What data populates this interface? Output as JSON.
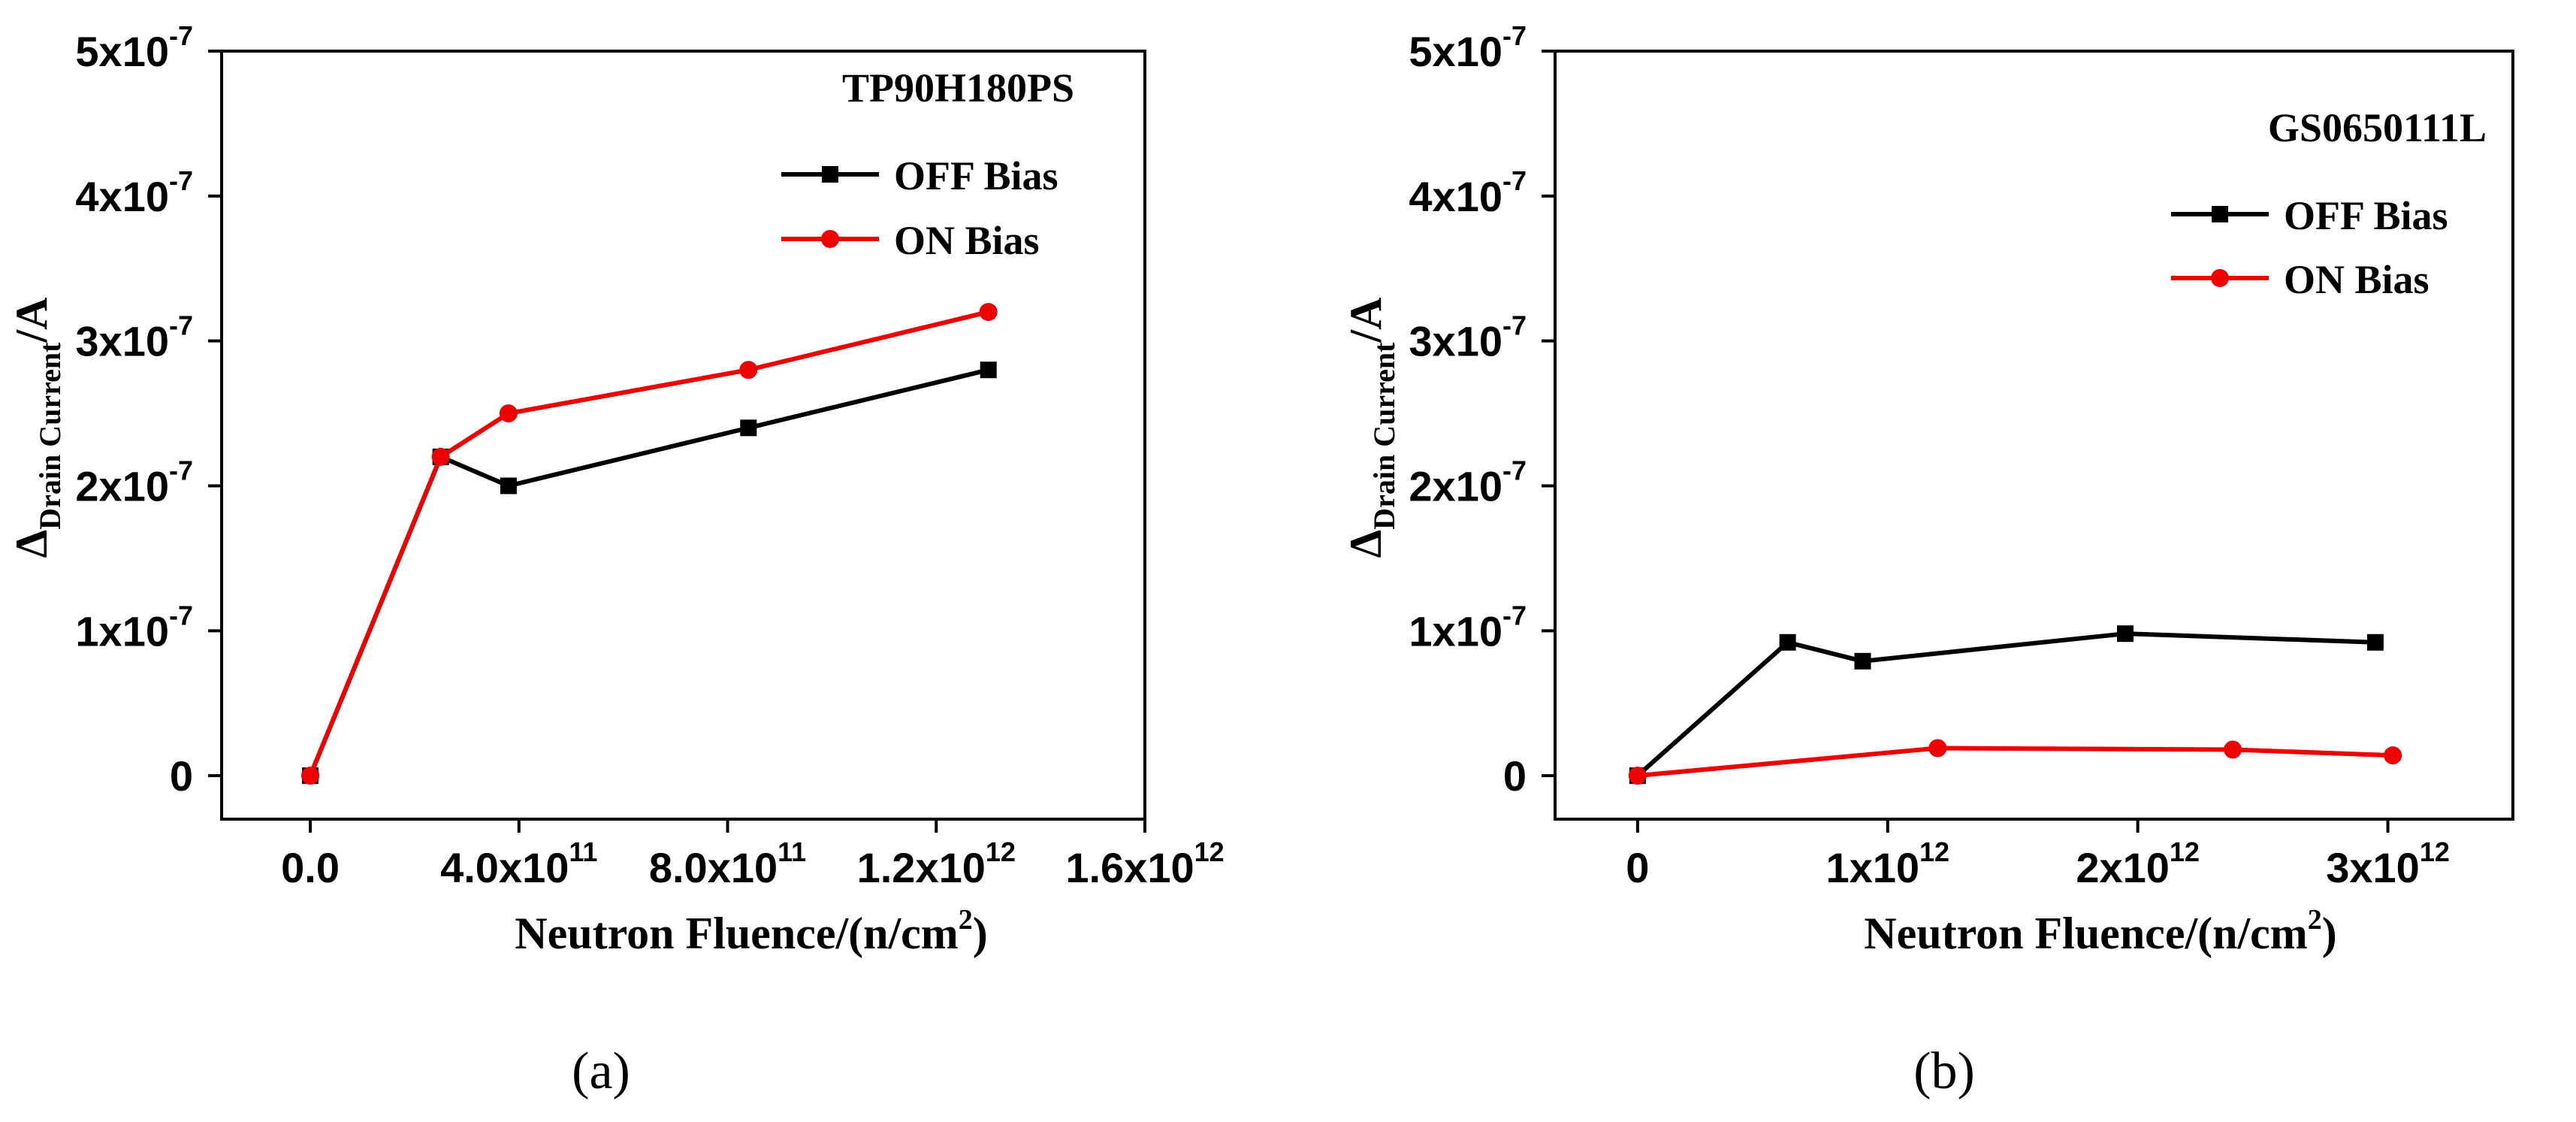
{
  "chart_data": [
    {
      "type": "line",
      "panel_label": "(a)",
      "legend_title": "TP90H180PS",
      "xlabel": "Neutron Fluence/(n/cm²)",
      "ylabel": "Δ Drain Current /A",
      "xlim": [
        -170000000000.0,
        1600000000000.0
      ],
      "ylim": [
        -3e-08,
        5e-07
      ],
      "xticks": [
        0,
        400000000000.0,
        800000000000.0,
        1200000000000.0,
        1600000000000.0
      ],
      "xtick_labels": [
        {
          "mant": "0.0",
          "exp": ""
        },
        {
          "mant": "4.0x10",
          "exp": "11"
        },
        {
          "mant": "8.0x10",
          "exp": "11"
        },
        {
          "mant": "1.2x10",
          "exp": "12"
        },
        {
          "mant": "1.6x10",
          "exp": "12"
        }
      ],
      "yticks": [
        0,
        1e-07,
        2e-07,
        3e-07,
        4e-07,
        5e-07
      ],
      "ytick_labels": [
        {
          "mant": "0",
          "exp": ""
        },
        {
          "mant": "1x10",
          "exp": "-7"
        },
        {
          "mant": "2x10",
          "exp": "-7"
        },
        {
          "mant": "3x10",
          "exp": "-7"
        },
        {
          "mant": "4x10",
          "exp": "-7"
        },
        {
          "mant": "5x10",
          "exp": "-7"
        }
      ],
      "series": [
        {
          "name": "OFF Bias",
          "color": "#000000",
          "marker": "square",
          "x": [
            0,
            250000000000.0,
            380000000000.0,
            840000000000.0,
            1300000000000.0
          ],
          "y": [
            0,
            2.2e-07,
            2e-07,
            2.4e-07,
            2.8e-07
          ]
        },
        {
          "name": "ON Bias",
          "color": "#ee0000",
          "marker": "circle",
          "x": [
            0,
            250000000000.0,
            380000000000.0,
            840000000000.0,
            1300000000000.0
          ],
          "y": [
            0,
            2.2e-07,
            2.5e-07,
            2.8e-07,
            3.2e-07
          ]
        }
      ]
    },
    {
      "type": "line",
      "panel_label": "(b)",
      "legend_title": "GS0650111L",
      "xlabel": "Neutron Fluence/(n/cm²)",
      "ylabel": "Δ Drain Current /A",
      "xlim": [
        -330000000000.0,
        3500000000000.0
      ],
      "ylim": [
        -3e-08,
        5e-07
      ],
      "xticks": [
        0,
        1000000000000.0,
        2000000000000.0,
        3000000000000.0
      ],
      "xtick_labels": [
        {
          "mant": "0",
          "exp": ""
        },
        {
          "mant": "1x10",
          "exp": "12"
        },
        {
          "mant": "2x10",
          "exp": "12"
        },
        {
          "mant": "3x10",
          "exp": "12"
        }
      ],
      "yticks": [
        0,
        1e-07,
        2e-07,
        3e-07,
        4e-07,
        5e-07
      ],
      "ytick_labels": [
        {
          "mant": "0",
          "exp": ""
        },
        {
          "mant": "1x10",
          "exp": "-7"
        },
        {
          "mant": "2x10",
          "exp": "-7"
        },
        {
          "mant": "3x10",
          "exp": "-7"
        },
        {
          "mant": "4x10",
          "exp": "-7"
        },
        {
          "mant": "5x10",
          "exp": "-7"
        }
      ],
      "series": [
        {
          "name": "OFF Bias",
          "color": "#000000",
          "marker": "square",
          "x": [
            0,
            600000000000.0,
            900000000000.0,
            1950000000000.0,
            2950000000000.0
          ],
          "y": [
            0,
            9.2e-08,
            7.9e-08,
            9.8e-08,
            9.2e-08
          ]
        },
        {
          "name": "ON Bias",
          "color": "#ee0000",
          "marker": "circle",
          "x": [
            0,
            1200000000000.0,
            2380000000000.0,
            3020000000000.0
          ],
          "y": [
            0,
            1.9e-08,
            1.8e-08,
            1.4e-08
          ]
        }
      ]
    }
  ]
}
